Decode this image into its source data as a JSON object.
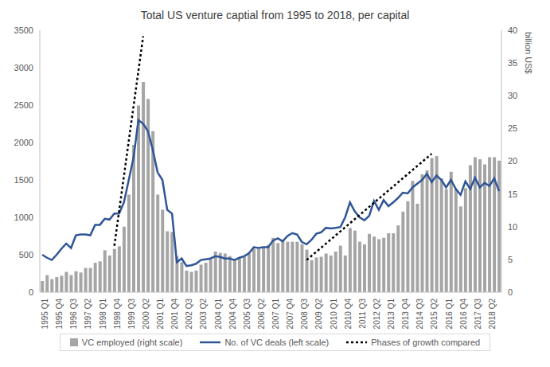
{
  "chart_data": {
    "type": "bar",
    "title": "Total US venture captial from 1995 to 2018, per capital",
    "categories": [
      "1995 Q1",
      null,
      null,
      "1995 Q4",
      null,
      null,
      "1996 Q3",
      null,
      null,
      "1997 Q2",
      null,
      null,
      "1998 Q1",
      null,
      null,
      "1998 Q4",
      null,
      null,
      "1999 Q3",
      null,
      null,
      "2000 Q2",
      null,
      null,
      "2001 Q1",
      null,
      null,
      "2001 Q4",
      null,
      null,
      "2002 Q3",
      null,
      null,
      "2003 Q2",
      null,
      null,
      "2004 Q1",
      null,
      null,
      "2004 Q4",
      null,
      null,
      "2005 Q3",
      null,
      null,
      "2006 Q2",
      null,
      null,
      "2007 Q1",
      null,
      null,
      "2007 Q4",
      null,
      null,
      "2008 Q3",
      null,
      null,
      "2009 Q2",
      null,
      null,
      "2010 Q1",
      null,
      null,
      "2010 Q4",
      null,
      null,
      "2011 Q3",
      null,
      null,
      "2012 Q2",
      null,
      null,
      "2013 Q1",
      null,
      null,
      "2013 Q4",
      null,
      null,
      "2014 Q3",
      null,
      null,
      "2015 Q2",
      null,
      null,
      "2016 Q1",
      null,
      null,
      "2016 Q4",
      null,
      null,
      "2017 Q3",
      null,
      null,
      "2018 Q2",
      null,
      null
    ],
    "series": [
      {
        "name": "VC employed (right scale)",
        "type": "bar",
        "axis": "y2",
        "color": "#a5a5a5",
        "values": [
          1.7,
          2.6,
          2.0,
          2.3,
          2.5,
          3.1,
          2.6,
          3.2,
          3.0,
          3.7,
          3.7,
          4.5,
          4.7,
          6.4,
          5.6,
          6.6,
          7.0,
          10.0,
          14.9,
          22.5,
          28.5,
          32.1,
          29.5,
          24.6,
          14.9,
          12.6,
          9.3,
          9.2,
          5.5,
          4.6,
          3.3,
          3.1,
          3.3,
          4.2,
          4.5,
          5.0,
          6.2,
          6.0,
          5.9,
          5.5,
          4.8,
          5.2,
          5.4,
          5.9,
          6.6,
          6.6,
          6.8,
          7.2,
          8.3,
          7.5,
          8.0,
          7.7,
          7.7,
          7.7,
          7.3,
          6.5,
          4.9,
          5.3,
          5.4,
          5.9,
          5.6,
          6.2,
          7.1,
          5.6,
          9.8,
          9.4,
          7.7,
          7.3,
          8.9,
          8.5,
          8.1,
          8.3,
          9.0,
          9.0,
          10.2,
          12.3,
          13.9,
          17.0,
          13.5,
          18.0,
          18.6,
          20.5,
          20.8,
          17.4,
          15.7,
          18.4,
          15.8,
          13.1,
          15.9,
          19.4,
          20.6,
          20.3,
          19.5,
          20.6,
          20.6,
          20.1
        ]
      },
      {
        "name": "No. of VC deals (left scale)",
        "type": "line",
        "color": "#2f5597",
        "values": [
          500,
          460,
          430,
          500,
          580,
          650,
          590,
          760,
          770,
          770,
          760,
          900,
          900,
          980,
          970,
          1050,
          1050,
          1200,
          1500,
          1800,
          2300,
          2250,
          2150,
          1900,
          1600,
          1500,
          1100,
          1050,
          400,
          450,
          350,
          360,
          380,
          430,
          440,
          450,
          480,
          470,
          450,
          450,
          430,
          460,
          480,
          520,
          600,
          590,
          600,
          600,
          690,
          720,
          680,
          750,
          790,
          770,
          670,
          640,
          700,
          780,
          800,
          860,
          850,
          860,
          870,
          1000,
          1200,
          1080,
          1000,
          960,
          1020,
          1220,
          1100,
          1230,
          1150,
          1200,
          1260,
          1330,
          1320,
          1400,
          1450,
          1500,
          1580,
          1470,
          1560,
          1500,
          1400,
          1500,
          1380,
          1300,
          1480,
          1380,
          1530,
          1400,
          1460,
          1420,
          1520,
          1350
        ]
      },
      {
        "name": "Phases of growth compared",
        "type": "line",
        "color": "#000000",
        "line_style": "dotted",
        "values": [
          null,
          null,
          null,
          null,
          null,
          null,
          null,
          null,
          null,
          null,
          null,
          null,
          null,
          null,
          null,
          620,
          null,
          null,
          null,
          null,
          null,
          3420,
          null,
          null,
          null,
          null,
          null,
          null,
          null,
          null,
          null,
          null,
          null,
          null,
          null,
          null,
          null,
          null,
          null,
          null,
          null,
          null,
          null,
          null,
          null,
          null,
          null,
          null,
          null,
          null,
          null,
          null,
          null,
          null,
          null,
          430,
          null,
          null,
          null,
          null,
          null,
          null,
          null,
          null,
          null,
          null,
          null,
          null,
          null,
          null,
          null,
          null,
          null,
          null,
          null,
          null,
          null,
          null,
          null,
          null,
          null,
          1850,
          null,
          null,
          null,
          null,
          null,
          null,
          null,
          null,
          null,
          null,
          null,
          null,
          null,
          null
        ]
      }
    ],
    "ylim": [
      0,
      3500
    ],
    "yticks": [
      0,
      500,
      1000,
      1500,
      2000,
      2500,
      3000,
      3500
    ],
    "y2lim": [
      0,
      40
    ],
    "y2ticks": [
      0,
      5,
      10,
      15,
      20,
      25,
      30,
      35,
      40
    ],
    "y2label": "billion US$",
    "grid": false,
    "legend": "bottom"
  }
}
